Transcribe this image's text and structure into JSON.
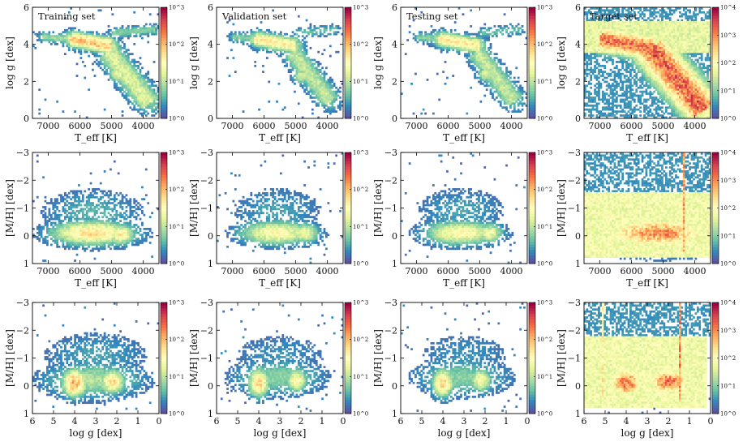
{
  "figure": {
    "colormap": [
      "#5e4fa2",
      "#3288bd",
      "#66c2a5",
      "#abdda4",
      "#e6f598",
      "#ffffbf",
      "#fee08b",
      "#fdae61",
      "#f46d43",
      "#d53e4f",
      "#9e0142"
    ],
    "columns": [
      "Training set",
      "Validation set",
      "Testing set",
      "Target set"
    ],
    "rows": [
      "logg vs Teff",
      "[M/H] vs Teff",
      "[M/H] vs logg"
    ]
  },
  "chart_data": [
    {
      "type": "heatmap",
      "title": "Training set",
      "xlabel": "T_eff [K]",
      "ylabel": "log g [dex]",
      "xlim": [
        7500,
        3500
      ],
      "ylim": [
        6,
        0
      ],
      "xticks": [
        "7000",
        "6000",
        "5000",
        "4000"
      ],
      "yticks": [
        "0",
        "2",
        "4",
        "6"
      ],
      "colorbar": {
        "min_exp": 0,
        "max_exp": 3,
        "labels": [
          "10^0",
          "10^1",
          "10^2",
          "10^3"
        ]
      },
      "density_regions": [
        {
          "shape": "band",
          "from": [
            6300,
            4.3
          ],
          "to": [
            5000,
            3.9
          ],
          "width": 0.3,
          "intensity": 0.65
        },
        {
          "shape": "band",
          "from": [
            5100,
            3.6
          ],
          "to": [
            3800,
            0.8
          ],
          "width": 0.45,
          "intensity": 0.4
        },
        {
          "shape": "blob",
          "center": [
            4800,
            2.4
          ],
          "spread": [
            200,
            0.3
          ],
          "intensity": 0.45
        },
        {
          "shape": "band",
          "from": [
            7200,
            4.4
          ],
          "to": [
            6300,
            4.3
          ],
          "width": 0.2,
          "intensity": 0.3
        },
        {
          "shape": "band",
          "from": [
            5000,
            4.6
          ],
          "to": [
            3600,
            4.8
          ],
          "width": 0.2,
          "intensity": 0.25
        }
      ]
    },
    {
      "type": "heatmap",
      "title": "Validation set",
      "xlabel": "T_eff [K]",
      "ylabel": "log g [dex]",
      "xlim": [
        7500,
        3500
      ],
      "ylim": [
        6,
        0
      ],
      "xticks": [
        "7000",
        "6000",
        "5000",
        "4000"
      ],
      "yticks": [
        "0",
        "2",
        "4",
        "6"
      ],
      "colorbar": {
        "min_exp": 0,
        "max_exp": 3,
        "labels": [
          "10^0",
          "10^1",
          "10^2",
          "10^3"
        ]
      },
      "density_regions": [
        {
          "shape": "band",
          "from": [
            6300,
            4.3
          ],
          "to": [
            5000,
            3.9
          ],
          "width": 0.3,
          "intensity": 0.55
        },
        {
          "shape": "band",
          "from": [
            5100,
            3.6
          ],
          "to": [
            3900,
            0.9
          ],
          "width": 0.4,
          "intensity": 0.35
        },
        {
          "shape": "blob",
          "center": [
            4800,
            2.3
          ],
          "spread": [
            200,
            0.3
          ],
          "intensity": 0.4
        },
        {
          "shape": "band",
          "from": [
            7000,
            4.4
          ],
          "to": [
            6300,
            4.3
          ],
          "width": 0.2,
          "intensity": 0.25
        },
        {
          "shape": "band",
          "from": [
            5000,
            4.6
          ],
          "to": [
            3700,
            4.8
          ],
          "width": 0.2,
          "intensity": 0.2
        }
      ]
    },
    {
      "type": "heatmap",
      "title": "Testing set",
      "xlabel": "T_eff [K]",
      "ylabel": "log g [dex]",
      "xlim": [
        7500,
        3500
      ],
      "ylim": [
        6,
        0
      ],
      "xticks": [
        "7000",
        "6000",
        "5000",
        "4000"
      ],
      "yticks": [
        "0",
        "2",
        "4",
        "6"
      ],
      "colorbar": {
        "min_exp": 0,
        "max_exp": 3,
        "labels": [
          "10^0",
          "10^1",
          "10^2",
          "10^3"
        ]
      },
      "density_regions": [
        {
          "shape": "band",
          "from": [
            6300,
            4.3
          ],
          "to": [
            5000,
            3.9
          ],
          "width": 0.3,
          "intensity": 0.55
        },
        {
          "shape": "band",
          "from": [
            5100,
            3.6
          ],
          "to": [
            3900,
            0.9
          ],
          "width": 0.4,
          "intensity": 0.35
        },
        {
          "shape": "blob",
          "center": [
            4800,
            2.4
          ],
          "spread": [
            200,
            0.3
          ],
          "intensity": 0.4
        },
        {
          "shape": "band",
          "from": [
            7000,
            4.4
          ],
          "to": [
            6300,
            4.3
          ],
          "width": 0.2,
          "intensity": 0.25
        },
        {
          "shape": "band",
          "from": [
            5000,
            4.6
          ],
          "to": [
            3700,
            4.8
          ],
          "width": 0.2,
          "intensity": 0.2
        }
      ]
    },
    {
      "type": "heatmap",
      "title": "Target set",
      "xlabel": "T_eff [K]",
      "ylabel": "log g [dex]",
      "xlim": [
        7500,
        3500
      ],
      "ylim": [
        6,
        0
      ],
      "xticks": [
        "7000",
        "6000",
        "5000",
        "4000"
      ],
      "yticks": [
        "0",
        "2",
        "4",
        "6"
      ],
      "colorbar": {
        "min_exp": 0,
        "max_exp": 4,
        "labels": [
          "10^0",
          "10^1",
          "10^2",
          "10^3",
          "10^4"
        ]
      },
      "density_regions": [
        {
          "shape": "rect",
          "x": [
            7500,
            3500
          ],
          "y": [
            3.5,
            5.3
          ],
          "intensity": 0.42
        },
        {
          "shape": "band",
          "from": [
            7000,
            4.3
          ],
          "to": [
            5300,
            3.8
          ],
          "width": 0.5,
          "intensity": 0.8
        },
        {
          "shape": "band",
          "from": [
            5400,
            3.8
          ],
          "to": [
            3700,
            0.4
          ],
          "width": 0.7,
          "intensity": 0.82
        },
        {
          "shape": "blob",
          "center": [
            4600,
            2.2
          ],
          "spread": [
            300,
            0.5
          ],
          "intensity": 0.85
        },
        {
          "shape": "rect",
          "x": [
            7500,
            3500
          ],
          "y": [
            0,
            6
          ],
          "intensity": 0.12
        }
      ]
    },
    {
      "type": "heatmap",
      "title": "",
      "xlabel": "T_eff [K]",
      "ylabel": "[M/H] [dex]",
      "xlim": [
        7500,
        3500
      ],
      "ylim": [
        -3,
        1
      ],
      "xticks": [
        "7000",
        "6000",
        "5000",
        "4000"
      ],
      "yticks": [
        "1",
        "0",
        "-1",
        "-2",
        "-3"
      ],
      "colorbar": {
        "min_exp": 0,
        "max_exp": 3,
        "labels": [
          "10^0",
          "10^1",
          "10^2",
          "10^3"
        ]
      },
      "density_regions": [
        {
          "shape": "blob",
          "center": [
            5600,
            -0.1
          ],
          "spread": [
            900,
            0.3
          ],
          "intensity": 0.6
        },
        {
          "shape": "blob",
          "center": [
            4700,
            -0.05
          ],
          "spread": [
            300,
            0.25
          ],
          "intensity": 0.55
        },
        {
          "shape": "blob",
          "center": [
            5600,
            -0.8
          ],
          "spread": [
            1100,
            0.6
          ],
          "intensity": 0.18
        }
      ]
    },
    {
      "type": "heatmap",
      "title": "",
      "xlabel": "T_eff [K]",
      "ylabel": "[M/H] [dex]",
      "xlim": [
        7500,
        3500
      ],
      "ylim": [
        -3,
        1
      ],
      "xticks": [
        "7000",
        "6000",
        "5000",
        "4000"
      ],
      "yticks": [
        "1",
        "0",
        "-1",
        "-2",
        "-3"
      ],
      "colorbar": {
        "min_exp": 0,
        "max_exp": 3,
        "labels": [
          "10^0",
          "10^1",
          "10^2",
          "10^3"
        ]
      },
      "density_regions": [
        {
          "shape": "blob",
          "center": [
            5600,
            -0.1
          ],
          "spread": [
            800,
            0.3
          ],
          "intensity": 0.5
        },
        {
          "shape": "blob",
          "center": [
            4700,
            -0.1
          ],
          "spread": [
            300,
            0.25
          ],
          "intensity": 0.45
        },
        {
          "shape": "blob",
          "center": [
            5600,
            -0.9
          ],
          "spread": [
            1000,
            0.6
          ],
          "intensity": 0.15
        }
      ]
    },
    {
      "type": "heatmap",
      "title": "",
      "xlabel": "T_eff [K]",
      "ylabel": "[M/H] [dex]",
      "xlim": [
        7500,
        3500
      ],
      "ylim": [
        -3,
        1
      ],
      "xticks": [
        "7000",
        "6000",
        "5000",
        "4000"
      ],
      "yticks": [
        "1",
        "0",
        "-1",
        "-2",
        "-3"
      ],
      "colorbar": {
        "min_exp": 0,
        "max_exp": 3,
        "labels": [
          "10^0",
          "10^1",
          "10^2",
          "10^3"
        ]
      },
      "density_regions": [
        {
          "shape": "blob",
          "center": [
            5600,
            -0.1
          ],
          "spread": [
            800,
            0.3
          ],
          "intensity": 0.5
        },
        {
          "shape": "blob",
          "center": [
            4700,
            -0.1
          ],
          "spread": [
            300,
            0.25
          ],
          "intensity": 0.45
        },
        {
          "shape": "blob",
          "center": [
            5600,
            -0.9
          ],
          "spread": [
            1000,
            0.6
          ],
          "intensity": 0.15
        }
      ]
    },
    {
      "type": "heatmap",
      "title": "",
      "xlabel": "T_eff [K]",
      "ylabel": "[M/H] [dex]",
      "xlim": [
        7500,
        3500
      ],
      "ylim": [
        -3,
        1
      ],
      "xticks": [
        "7000",
        "6000",
        "5000",
        "4000"
      ],
      "yticks": [
        "1",
        "0",
        "-1",
        "-2",
        "-3"
      ],
      "colorbar": {
        "min_exp": 0,
        "max_exp": 4,
        "labels": [
          "10^0",
          "10^1",
          "10^2",
          "10^3",
          "10^4"
        ]
      },
      "density_regions": [
        {
          "shape": "rect",
          "x": [
            7500,
            3500
          ],
          "y": [
            -1.6,
            0.8
          ],
          "intensity": 0.45
        },
        {
          "shape": "blob",
          "center": [
            5200,
            -0.1
          ],
          "spread": [
            1400,
            0.45
          ],
          "intensity": 0.72
        },
        {
          "shape": "blob",
          "center": [
            4800,
            -0.1
          ],
          "spread": [
            400,
            0.3
          ],
          "intensity": 0.82
        },
        {
          "shape": "rect",
          "x": [
            7500,
            3500
          ],
          "y": [
            -3,
            -1.6
          ],
          "intensity": 0.12
        },
        {
          "shape": "vline",
          "x": 4350,
          "y": [
            -3,
            0.6
          ],
          "intensity": 0.7
        }
      ]
    },
    {
      "type": "heatmap",
      "title": "",
      "xlabel": "log g [dex]",
      "ylabel": "[M/H] [dex]",
      "xlim": [
        6,
        0
      ],
      "ylim": [
        -3,
        1
      ],
      "xticks": [
        "6",
        "5",
        "4",
        "3",
        "2",
        "1",
        "0"
      ],
      "yticks": [
        "1",
        "0",
        "-1",
        "-2",
        "-3"
      ],
      "colorbar": {
        "min_exp": 0,
        "max_exp": 3,
        "labels": [
          "10^0",
          "10^1",
          "10^2",
          "10^3"
        ]
      },
      "density_regions": [
        {
          "shape": "blob",
          "center": [
            4.0,
            -0.1
          ],
          "spread": [
            0.4,
            0.35
          ],
          "intensity": 0.72
        },
        {
          "shape": "blob",
          "center": [
            2.2,
            -0.15
          ],
          "spread": [
            0.4,
            0.3
          ],
          "intensity": 0.6
        },
        {
          "shape": "blob",
          "center": [
            3.1,
            -0.2
          ],
          "spread": [
            1.6,
            0.45
          ],
          "intensity": 0.32
        },
        {
          "shape": "blob",
          "center": [
            3.0,
            -1.1
          ],
          "spread": [
            1.8,
            0.6
          ],
          "intensity": 0.15
        }
      ]
    },
    {
      "type": "heatmap",
      "title": "",
      "xlabel": "log g [dex]",
      "ylabel": "[M/H] [dex]",
      "xlim": [
        6,
        0
      ],
      "ylim": [
        -3,
        1
      ],
      "xticks": [
        "6",
        "5",
        "4",
        "3",
        "2",
        "1",
        "0"
      ],
      "yticks": [
        "1",
        "0",
        "-1",
        "-2",
        "-3"
      ],
      "colorbar": {
        "min_exp": 0,
        "max_exp": 3,
        "labels": [
          "10^0",
          "10^1",
          "10^2",
          "10^3"
        ]
      },
      "density_regions": [
        {
          "shape": "blob",
          "center": [
            4.0,
            -0.1
          ],
          "spread": [
            0.35,
            0.35
          ],
          "intensity": 0.62
        },
        {
          "shape": "blob",
          "center": [
            2.2,
            -0.2
          ],
          "spread": [
            0.35,
            0.3
          ],
          "intensity": 0.5
        },
        {
          "shape": "blob",
          "center": [
            3.1,
            -0.3
          ],
          "spread": [
            1.5,
            0.45
          ],
          "intensity": 0.26
        },
        {
          "shape": "blob",
          "center": [
            3.0,
            -1.1
          ],
          "spread": [
            1.7,
            0.6
          ],
          "intensity": 0.12
        }
      ]
    },
    {
      "type": "heatmap",
      "title": "",
      "xlabel": "log g [dex]",
      "ylabel": "[M/H] [dex]",
      "xlim": [
        6,
        0
      ],
      "ylim": [
        -3,
        1
      ],
      "xticks": [
        "6",
        "5",
        "4",
        "3",
        "2",
        "1",
        "0"
      ],
      "yticks": [
        "1",
        "0",
        "-1",
        "-2",
        "-3"
      ],
      "colorbar": {
        "min_exp": 0,
        "max_exp": 3,
        "labels": [
          "10^0",
          "10^1",
          "10^2",
          "10^3"
        ]
      },
      "density_regions": [
        {
          "shape": "blob",
          "center": [
            4.0,
            -0.1
          ],
          "spread": [
            0.35,
            0.35
          ],
          "intensity": 0.62
        },
        {
          "shape": "blob",
          "center": [
            2.2,
            -0.2
          ],
          "spread": [
            0.35,
            0.3
          ],
          "intensity": 0.5
        },
        {
          "shape": "blob",
          "center": [
            3.1,
            -0.3
          ],
          "spread": [
            1.5,
            0.45
          ],
          "intensity": 0.26
        },
        {
          "shape": "blob",
          "center": [
            3.0,
            -1.1
          ],
          "spread": [
            1.7,
            0.6
          ],
          "intensity": 0.12
        }
      ]
    },
    {
      "type": "heatmap",
      "title": "",
      "xlabel": "log g [dex]",
      "ylabel": "[M/H] [dex]",
      "xlim": [
        6,
        0
      ],
      "ylim": [
        -3,
        1
      ],
      "xticks": [
        "6",
        "5",
        "4",
        "3",
        "2",
        "1",
        "0"
      ],
      "yticks": [
        "1",
        "0",
        "-1",
        "-2",
        "-3"
      ],
      "colorbar": {
        "min_exp": 0,
        "max_exp": 4,
        "labels": [
          "10^0",
          "10^1",
          "10^2",
          "10^3",
          "10^4"
        ]
      },
      "density_regions": [
        {
          "shape": "rect",
          "x": [
            6,
            0.2
          ],
          "y": [
            -1.8,
            0.8
          ],
          "intensity": 0.45
        },
        {
          "shape": "blob",
          "center": [
            4.0,
            -0.1
          ],
          "spread": [
            0.6,
            0.4
          ],
          "intensity": 0.8
        },
        {
          "shape": "blob",
          "center": [
            2.0,
            -0.15
          ],
          "spread": [
            0.8,
            0.35
          ],
          "intensity": 0.8
        },
        {
          "shape": "rect",
          "x": [
            6,
            0
          ],
          "y": [
            -3,
            -1.8
          ],
          "intensity": 0.12
        },
        {
          "shape": "vline",
          "x": 1.45,
          "y": [
            -3,
            0.6
          ],
          "intensity": 0.75
        },
        {
          "shape": "vline",
          "x": 5.1,
          "y": [
            -3,
            0.4
          ],
          "intensity": 0.55
        }
      ]
    }
  ]
}
